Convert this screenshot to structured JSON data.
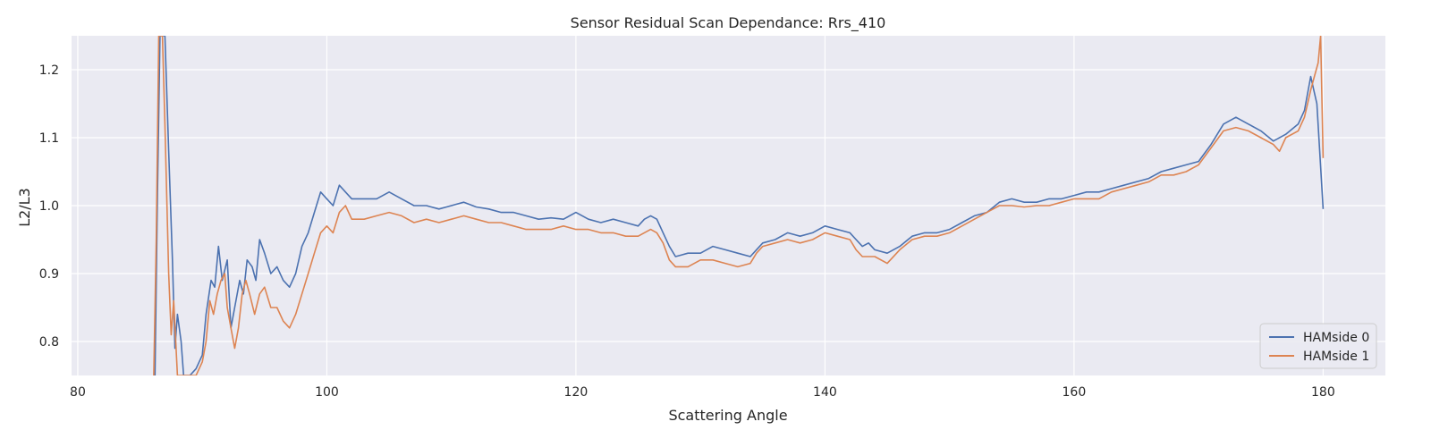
{
  "chart_data": {
    "type": "line",
    "title": "Sensor Residual Scan Dependance: Rrs_410",
    "xlabel": "Scattering Angle",
    "ylabel": "L2/L3",
    "xlim": [
      79.5,
      185
    ],
    "ylim": [
      0.75,
      1.25
    ],
    "xticks": [
      80,
      100,
      120,
      140,
      160,
      180
    ],
    "yticks": [
      0.8,
      0.9,
      1.0,
      1.1,
      1.2
    ],
    "grid": true,
    "legend_position": "lower-right",
    "background": "#eaeaf2",
    "series": [
      {
        "name": "HAMside 0",
        "color": "#4c72b0",
        "points": [
          [
            86.2,
            0.75
          ],
          [
            86.4,
            1.02
          ],
          [
            86.6,
            1.25
          ],
          [
            86.8,
            1.25
          ],
          [
            87.0,
            1.25
          ],
          [
            87.3,
            1.08
          ],
          [
            87.6,
            0.92
          ],
          [
            87.8,
            0.79
          ],
          [
            88.0,
            0.84
          ],
          [
            88.3,
            0.8
          ],
          [
            88.5,
            0.75
          ],
          [
            89.0,
            0.75
          ],
          [
            89.5,
            0.76
          ],
          [
            90.0,
            0.78
          ],
          [
            90.3,
            0.84
          ],
          [
            90.7,
            0.89
          ],
          [
            91.0,
            0.88
          ],
          [
            91.3,
            0.94
          ],
          [
            91.6,
            0.89
          ],
          [
            92.0,
            0.92
          ],
          [
            92.3,
            0.82
          ],
          [
            92.6,
            0.85
          ],
          [
            93.0,
            0.89
          ],
          [
            93.3,
            0.87
          ],
          [
            93.6,
            0.92
          ],
          [
            94.0,
            0.91
          ],
          [
            94.3,
            0.89
          ],
          [
            94.6,
            0.95
          ],
          [
            95.0,
            0.93
          ],
          [
            95.5,
            0.9
          ],
          [
            96.0,
            0.91
          ],
          [
            96.5,
            0.89
          ],
          [
            97.0,
            0.88
          ],
          [
            97.5,
            0.9
          ],
          [
            98.0,
            0.94
          ],
          [
            98.5,
            0.96
          ],
          [
            99.0,
            0.99
          ],
          [
            99.5,
            1.02
          ],
          [
            100.0,
            1.01
          ],
          [
            100.5,
            1.0
          ],
          [
            101.0,
            1.03
          ],
          [
            101.5,
            1.02
          ],
          [
            102.0,
            1.01
          ],
          [
            103.0,
            1.01
          ],
          [
            104.0,
            1.01
          ],
          [
            105.0,
            1.02
          ],
          [
            106.0,
            1.01
          ],
          [
            107.0,
            1.0
          ],
          [
            108.0,
            1.0
          ],
          [
            109.0,
            0.995
          ],
          [
            110.0,
            1.0
          ],
          [
            111.0,
            1.005
          ],
          [
            112.0,
            0.998
          ],
          [
            113.0,
            0.995
          ],
          [
            114.0,
            0.99
          ],
          [
            115.0,
            0.99
          ],
          [
            116.0,
            0.985
          ],
          [
            117.0,
            0.98
          ],
          [
            118.0,
            0.982
          ],
          [
            119.0,
            0.98
          ],
          [
            120.0,
            0.99
          ],
          [
            121.0,
            0.98
          ],
          [
            122.0,
            0.975
          ],
          [
            123.0,
            0.98
          ],
          [
            124.0,
            0.975
          ],
          [
            125.0,
            0.97
          ],
          [
            125.5,
            0.98
          ],
          [
            126.0,
            0.985
          ],
          [
            126.5,
            0.98
          ],
          [
            127.0,
            0.96
          ],
          [
            127.5,
            0.94
          ],
          [
            128.0,
            0.925
          ],
          [
            129.0,
            0.93
          ],
          [
            130.0,
            0.93
          ],
          [
            131.0,
            0.94
          ],
          [
            132.0,
            0.935
          ],
          [
            133.0,
            0.93
          ],
          [
            134.0,
            0.925
          ],
          [
            134.5,
            0.935
          ],
          [
            135.0,
            0.945
          ],
          [
            136.0,
            0.95
          ],
          [
            137.0,
            0.96
          ],
          [
            138.0,
            0.955
          ],
          [
            139.0,
            0.96
          ],
          [
            140.0,
            0.97
          ],
          [
            141.0,
            0.965
          ],
          [
            142.0,
            0.96
          ],
          [
            142.5,
            0.95
          ],
          [
            143.0,
            0.94
          ],
          [
            143.5,
            0.945
          ],
          [
            144.0,
            0.935
          ],
          [
            145.0,
            0.93
          ],
          [
            146.0,
            0.94
          ],
          [
            147.0,
            0.955
          ],
          [
            148.0,
            0.96
          ],
          [
            149.0,
            0.96
          ],
          [
            150.0,
            0.965
          ],
          [
            151.0,
            0.975
          ],
          [
            152.0,
            0.985
          ],
          [
            153.0,
            0.99
          ],
          [
            154.0,
            1.005
          ],
          [
            155.0,
            1.01
          ],
          [
            156.0,
            1.005
          ],
          [
            157.0,
            1.005
          ],
          [
            158.0,
            1.01
          ],
          [
            159.0,
            1.01
          ],
          [
            160.0,
            1.015
          ],
          [
            161.0,
            1.02
          ],
          [
            162.0,
            1.02
          ],
          [
            163.0,
            1.025
          ],
          [
            164.0,
            1.03
          ],
          [
            165.0,
            1.035
          ],
          [
            166.0,
            1.04
          ],
          [
            167.0,
            1.05
          ],
          [
            168.0,
            1.055
          ],
          [
            169.0,
            1.06
          ],
          [
            170.0,
            1.065
          ],
          [
            171.0,
            1.09
          ],
          [
            172.0,
            1.12
          ],
          [
            173.0,
            1.13
          ],
          [
            174.0,
            1.12
          ],
          [
            175.0,
            1.11
          ],
          [
            176.0,
            1.095
          ],
          [
            177.0,
            1.105
          ],
          [
            178.0,
            1.12
          ],
          [
            178.5,
            1.14
          ],
          [
            179.0,
            1.19
          ],
          [
            179.5,
            1.15
          ],
          [
            180.0,
            0.995
          ]
        ]
      },
      {
        "name": "HAMside 1",
        "color": "#dd8452",
        "points": [
          [
            86.1,
            0.75
          ],
          [
            86.3,
            0.95
          ],
          [
            86.5,
            1.25
          ],
          [
            86.8,
            1.25
          ],
          [
            87.0,
            1.12
          ],
          [
            87.3,
            0.9
          ],
          [
            87.5,
            0.81
          ],
          [
            87.7,
            0.86
          ],
          [
            88.0,
            0.75
          ],
          [
            89.0,
            0.75
          ],
          [
            89.5,
            0.75
          ],
          [
            90.0,
            0.77
          ],
          [
            90.3,
            0.8
          ],
          [
            90.6,
            0.86
          ],
          [
            90.9,
            0.84
          ],
          [
            91.2,
            0.87
          ],
          [
            91.5,
            0.89
          ],
          [
            91.8,
            0.9
          ],
          [
            92.0,
            0.85
          ],
          [
            92.3,
            0.82
          ],
          [
            92.6,
            0.79
          ],
          [
            92.9,
            0.82
          ],
          [
            93.2,
            0.87
          ],
          [
            93.5,
            0.89
          ],
          [
            93.8,
            0.87
          ],
          [
            94.2,
            0.84
          ],
          [
            94.6,
            0.87
          ],
          [
            95.0,
            0.88
          ],
          [
            95.5,
            0.85
          ],
          [
            96.0,
            0.85
          ],
          [
            96.5,
            0.83
          ],
          [
            97.0,
            0.82
          ],
          [
            97.5,
            0.84
          ],
          [
            98.0,
            0.87
          ],
          [
            98.5,
            0.9
          ],
          [
            99.0,
            0.93
          ],
          [
            99.5,
            0.96
          ],
          [
            100.0,
            0.97
          ],
          [
            100.5,
            0.96
          ],
          [
            101.0,
            0.99
          ],
          [
            101.5,
            1.0
          ],
          [
            102.0,
            0.98
          ],
          [
            103.0,
            0.98
          ],
          [
            104.0,
            0.985
          ],
          [
            105.0,
            0.99
          ],
          [
            106.0,
            0.985
          ],
          [
            107.0,
            0.975
          ],
          [
            108.0,
            0.98
          ],
          [
            109.0,
            0.975
          ],
          [
            110.0,
            0.98
          ],
          [
            111.0,
            0.985
          ],
          [
            112.0,
            0.98
          ],
          [
            113.0,
            0.975
          ],
          [
            114.0,
            0.975
          ],
          [
            115.0,
            0.97
          ],
          [
            116.0,
            0.965
          ],
          [
            117.0,
            0.965
          ],
          [
            118.0,
            0.965
          ],
          [
            119.0,
            0.97
          ],
          [
            120.0,
            0.965
          ],
          [
            121.0,
            0.965
          ],
          [
            122.0,
            0.96
          ],
          [
            123.0,
            0.96
          ],
          [
            124.0,
            0.955
          ],
          [
            125.0,
            0.955
          ],
          [
            126.0,
            0.965
          ],
          [
            126.5,
            0.96
          ],
          [
            127.0,
            0.945
          ],
          [
            127.5,
            0.92
          ],
          [
            128.0,
            0.91
          ],
          [
            129.0,
            0.91
          ],
          [
            130.0,
            0.92
          ],
          [
            131.0,
            0.92
          ],
          [
            132.0,
            0.915
          ],
          [
            133.0,
            0.91
          ],
          [
            134.0,
            0.915
          ],
          [
            134.5,
            0.93
          ],
          [
            135.0,
            0.94
          ],
          [
            136.0,
            0.945
          ],
          [
            137.0,
            0.95
          ],
          [
            138.0,
            0.945
          ],
          [
            139.0,
            0.95
          ],
          [
            140.0,
            0.96
          ],
          [
            141.0,
            0.955
          ],
          [
            142.0,
            0.95
          ],
          [
            142.5,
            0.935
          ],
          [
            143.0,
            0.925
          ],
          [
            144.0,
            0.925
          ],
          [
            145.0,
            0.915
          ],
          [
            146.0,
            0.935
          ],
          [
            147.0,
            0.95
          ],
          [
            148.0,
            0.955
          ],
          [
            149.0,
            0.955
          ],
          [
            150.0,
            0.96
          ],
          [
            151.0,
            0.97
          ],
          [
            152.0,
            0.98
          ],
          [
            153.0,
            0.99
          ],
          [
            154.0,
            1.0
          ],
          [
            155.0,
            1.0
          ],
          [
            156.0,
            0.998
          ],
          [
            157.0,
            1.0
          ],
          [
            158.0,
            1.0
          ],
          [
            159.0,
            1.005
          ],
          [
            160.0,
            1.01
          ],
          [
            161.0,
            1.01
          ],
          [
            162.0,
            1.01
          ],
          [
            163.0,
            1.02
          ],
          [
            164.0,
            1.025
          ],
          [
            165.0,
            1.03
          ],
          [
            166.0,
            1.035
          ],
          [
            167.0,
            1.045
          ],
          [
            168.0,
            1.045
          ],
          [
            169.0,
            1.05
          ],
          [
            170.0,
            1.06
          ],
          [
            171.0,
            1.085
          ],
          [
            172.0,
            1.11
          ],
          [
            173.0,
            1.115
          ],
          [
            174.0,
            1.11
          ],
          [
            175.0,
            1.1
          ],
          [
            176.0,
            1.09
          ],
          [
            176.5,
            1.08
          ],
          [
            177.0,
            1.1
          ],
          [
            178.0,
            1.11
          ],
          [
            178.5,
            1.13
          ],
          [
            179.0,
            1.17
          ],
          [
            179.3,
            1.19
          ],
          [
            179.6,
            1.21
          ],
          [
            179.8,
            1.25
          ],
          [
            180.0,
            1.07
          ]
        ]
      }
    ]
  }
}
